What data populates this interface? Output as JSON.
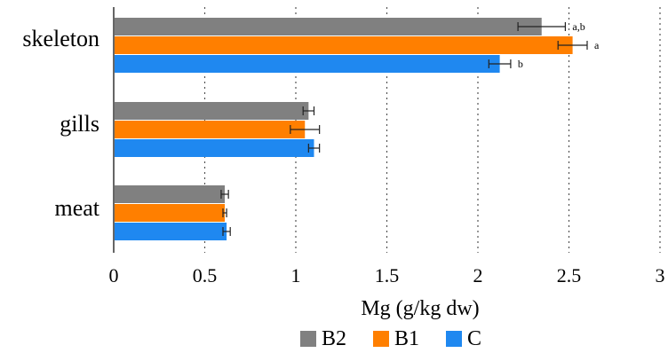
{
  "chart_data": {
    "type": "bar",
    "orientation": "horizontal",
    "categories": [
      "skeleton",
      "gills",
      "meat"
    ],
    "series": [
      {
        "name": "B2",
        "color": "#808080",
        "values": [
          2.35,
          1.07,
          0.61
        ],
        "errors": [
          0.13,
          0.03,
          0.02
        ],
        "annotations": [
          "a,b",
          "",
          ""
        ]
      },
      {
        "name": "B1",
        "color": "#ff7f00",
        "values": [
          2.52,
          1.05,
          0.61
        ],
        "errors": [
          0.08,
          0.08,
          0.01
        ],
        "annotations": [
          "a",
          "",
          ""
        ]
      },
      {
        "name": "C",
        "color": "#1f88f0",
        "values": [
          2.12,
          1.1,
          0.62
        ],
        "errors": [
          0.06,
          0.03,
          0.02
        ],
        "annotations": [
          "b",
          "",
          ""
        ]
      }
    ],
    "xlabel": "Mg (g/kg dw)",
    "ylabel": "",
    "title": "",
    "xlim": [
      0,
      3
    ],
    "xticks": [
      "0",
      "0.5",
      "1",
      "1.5",
      "2",
      "2.5",
      "3"
    ],
    "grid": "vertical dotted",
    "legend_position": "bottom"
  }
}
